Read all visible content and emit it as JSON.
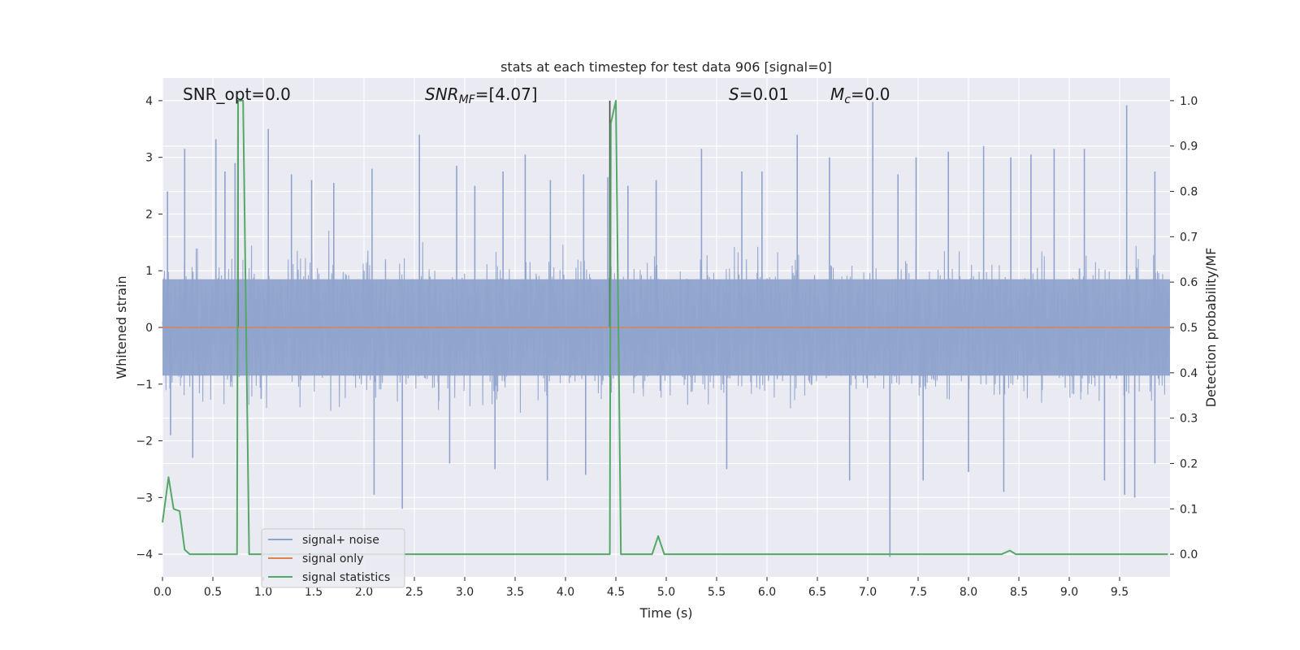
{
  "chart_data": {
    "type": "line",
    "title": "stats at each timestep for test data 906 [signal=0]",
    "xlabel": "Time (s)",
    "ylabel_left": "Whitened strain",
    "ylabel_right": "Detection probability/MF",
    "xlim": [
      0,
      10
    ],
    "ylim_left": [
      -4.4,
      4.4
    ],
    "ylim_right": [
      -0.05,
      1.05
    ],
    "xticks": [
      "0.0",
      "0.5",
      "1.0",
      "1.5",
      "2.0",
      "2.5",
      "3.0",
      "3.5",
      "4.0",
      "4.5",
      "5.0",
      "5.5",
      "6.0",
      "6.5",
      "7.0",
      "7.5",
      "8.0",
      "8.5",
      "9.0",
      "9.5"
    ],
    "xtick_values": [
      0.0,
      0.5,
      1.0,
      1.5,
      2.0,
      2.5,
      3.0,
      3.5,
      4.0,
      4.5,
      5.0,
      5.5,
      6.0,
      6.5,
      7.0,
      7.5,
      8.0,
      8.5,
      9.0,
      9.5
    ],
    "yticks_left": [
      "4",
      "3",
      "2",
      "1",
      "0",
      "−1",
      "−2",
      "−3",
      "−4"
    ],
    "ytick_values_left": [
      4,
      3,
      2,
      1,
      0,
      -1,
      -2,
      -3,
      -4
    ],
    "yticks_right": [
      "1.0",
      "0.9",
      "0.8",
      "0.7",
      "0.6",
      "0.5",
      "0.4",
      "0.3",
      "0.2",
      "0.1",
      "0.0"
    ],
    "ytick_values_right": [
      1.0,
      0.9,
      0.8,
      0.7,
      0.6,
      0.5,
      0.4,
      0.3,
      0.2,
      0.1,
      0.0
    ],
    "grid": true,
    "legend_placement": "lower-left",
    "annotations": {
      "snr_opt": "SNR_opt=0.0",
      "snr_mf_main": "SNR",
      "snr_mf_sub": "MF",
      "snr_mf_value": "=[4.07]",
      "s_var": "S",
      "s_value": "=0.01",
      "mc_var": "M",
      "mc_sub": "c",
      "mc_value": "=0.0"
    },
    "vertical_markers": [
      {
        "x": 0.75,
        "y_top": 4.0
      },
      {
        "x": 4.44,
        "y_top": 4.0
      }
    ],
    "series": [
      {
        "name": "signal+ noise",
        "color": "#8fa3cc",
        "kind": "noise",
        "spikes": [
          {
            "x": 0.05,
            "y": 2.4
          },
          {
            "x": 0.22,
            "y": 3.15
          },
          {
            "x": 0.53,
            "y": 3.32
          },
          {
            "x": 0.62,
            "y": 2.75
          },
          {
            "x": 0.72,
            "y": 2.9
          },
          {
            "x": 1.05,
            "y": 3.5
          },
          {
            "x": 1.28,
            "y": 2.7
          },
          {
            "x": 1.48,
            "y": 2.6
          },
          {
            "x": 1.7,
            "y": 2.55
          },
          {
            "x": 2.08,
            "y": 2.8
          },
          {
            "x": 2.55,
            "y": 3.4
          },
          {
            "x": 2.92,
            "y": 2.85
          },
          {
            "x": 3.1,
            "y": 2.5
          },
          {
            "x": 3.38,
            "y": 2.75
          },
          {
            "x": 3.6,
            "y": 3.05
          },
          {
            "x": 3.85,
            "y": 2.6
          },
          {
            "x": 4.18,
            "y": 2.7
          },
          {
            "x": 4.42,
            "y": 2.65
          },
          {
            "x": 4.62,
            "y": 2.5
          },
          {
            "x": 4.9,
            "y": 2.6
          },
          {
            "x": 5.35,
            "y": 3.15
          },
          {
            "x": 5.75,
            "y": 2.75
          },
          {
            "x": 5.95,
            "y": 2.75
          },
          {
            "x": 6.3,
            "y": 3.4
          },
          {
            "x": 6.62,
            "y": 3.0
          },
          {
            "x": 7.05,
            "y": 3.98
          },
          {
            "x": 7.3,
            "y": 2.7
          },
          {
            "x": 7.48,
            "y": 3.0
          },
          {
            "x": 7.8,
            "y": 3.1
          },
          {
            "x": 8.15,
            "y": 3.2
          },
          {
            "x": 8.42,
            "y": 3.0
          },
          {
            "x": 8.62,
            "y": 3.05
          },
          {
            "x": 8.85,
            "y": 3.15
          },
          {
            "x": 9.15,
            "y": 3.15
          },
          {
            "x": 9.57,
            "y": 3.92
          },
          {
            "x": 9.85,
            "y": 2.75
          },
          {
            "x": 0.08,
            "y": -1.9
          },
          {
            "x": 0.3,
            "y": -2.3
          },
          {
            "x": 2.1,
            "y": -2.95
          },
          {
            "x": 2.38,
            "y": -3.2
          },
          {
            "x": 2.85,
            "y": -2.4
          },
          {
            "x": 3.3,
            "y": -2.5
          },
          {
            "x": 3.82,
            "y": -2.7
          },
          {
            "x": 4.2,
            "y": -2.6
          },
          {
            "x": 5.6,
            "y": -2.5
          },
          {
            "x": 6.82,
            "y": -2.7
          },
          {
            "x": 7.22,
            "y": -4.05
          },
          {
            "x": 7.55,
            "y": -2.7
          },
          {
            "x": 8.0,
            "y": -2.55
          },
          {
            "x": 8.35,
            "y": -2.9
          },
          {
            "x": 9.35,
            "y": -2.7
          },
          {
            "x": 9.55,
            "y": -2.95
          },
          {
            "x": 9.65,
            "y": -3.0
          },
          {
            "x": 9.85,
            "y": -2.4
          }
        ]
      },
      {
        "name": "signal only",
        "color": "#dd8452",
        "x": [
          0,
          10
        ],
        "y": [
          0,
          0
        ]
      },
      {
        "name": "signal statistics",
        "color": "#55a868",
        "axis": "right",
        "x": [
          0.0,
          0.06,
          0.11,
          0.17,
          0.22,
          0.27,
          0.74,
          0.75,
          0.8,
          0.86,
          0.87,
          4.44,
          4.45,
          4.5,
          4.55,
          4.56,
          4.86,
          4.92,
          4.98,
          5.04,
          8.33,
          8.41,
          8.47,
          9.98
        ],
        "y": [
          0.07,
          0.17,
          0.1,
          0.095,
          0.01,
          0.0,
          0.0,
          1.0,
          1.0,
          0.0,
          0.0,
          0.0,
          0.95,
          1.0,
          0.0,
          0.0,
          0.0,
          0.04,
          0.0,
          0.0,
          0.0,
          0.008,
          0.0,
          0.0
        ]
      }
    ]
  }
}
